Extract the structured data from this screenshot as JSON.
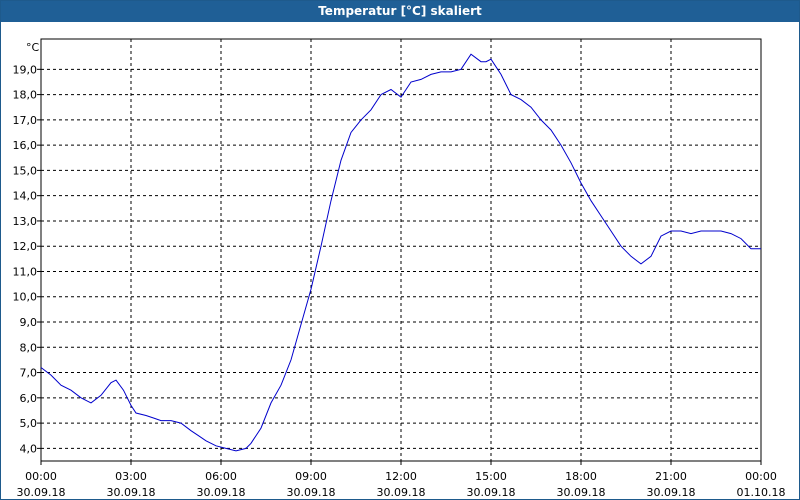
{
  "window": {
    "title": "Temperatur [°C] skaliert"
  },
  "chart_data": {
    "type": "line",
    "title": "Temperatur [°C] skaliert",
    "ylabel": "°C",
    "xlabel": "",
    "ylim": [
      3.5,
      20.2
    ],
    "y_ticks": [
      "4,0",
      "5,0",
      "6,0",
      "7,0",
      "8,0",
      "9,0",
      "10,0",
      "11,0",
      "12,0",
      "13,0",
      "14,0",
      "15,0",
      "16,0",
      "17,0",
      "18,0",
      "19,0"
    ],
    "x_ticks": [
      {
        "time": "00:00",
        "date": "30.09.18"
      },
      {
        "time": "03:00",
        "date": "30.09.18"
      },
      {
        "time": "06:00",
        "date": "30.09.18"
      },
      {
        "time": "09:00",
        "date": "30.09.18"
      },
      {
        "time": "12:00",
        "date": "30.09.18"
      },
      {
        "time": "15:00",
        "date": "30.09.18"
      },
      {
        "time": "18:00",
        "date": "30.09.18"
      },
      {
        "time": "21:00",
        "date": "30.09.18"
      },
      {
        "time": "00:00",
        "date": "01.10.18"
      }
    ],
    "grid": true,
    "line_color": "#0000cc",
    "series": [
      {
        "x": [
          "00:00",
          "00:20",
          "00:40",
          "01:00",
          "01:20",
          "01:40",
          "02:00",
          "02:20",
          "02:30",
          "02:45",
          "03:00",
          "03:10",
          "03:30",
          "03:45",
          "04:00",
          "04:20",
          "04:40",
          "05:00",
          "05:15",
          "05:30",
          "05:50",
          "06:10",
          "06:30",
          "06:50",
          "07:00",
          "07:20",
          "07:40",
          "08:00",
          "08:20",
          "08:40",
          "09:00",
          "09:20",
          "09:40",
          "10:00",
          "10:20",
          "10:40",
          "11:00",
          "11:20",
          "11:40",
          "12:00",
          "12:20",
          "12:40",
          "13:00",
          "13:20",
          "13:40",
          "14:00",
          "14:20",
          "14:40",
          "14:50",
          "15:00",
          "15:20",
          "15:40",
          "16:00",
          "16:20",
          "16:40",
          "17:00",
          "17:20",
          "17:40",
          "18:00",
          "18:20",
          "18:40",
          "19:00",
          "19:20",
          "19:40",
          "20:00",
          "20:20",
          "20:40",
          "21:00",
          "21:20",
          "21:40",
          "22:00",
          "22:20",
          "22:40",
          "23:00",
          "23:20",
          "23:40",
          "00:00"
        ],
        "y": [
          7.2,
          6.9,
          6.5,
          6.3,
          6.0,
          5.8,
          6.1,
          6.6,
          6.7,
          6.3,
          5.7,
          5.4,
          5.3,
          5.2,
          5.1,
          5.1,
          5.0,
          4.7,
          4.5,
          4.3,
          4.1,
          4.0,
          3.9,
          4.0,
          4.2,
          4.8,
          5.8,
          6.5,
          7.5,
          8.9,
          10.3,
          12.0,
          13.8,
          15.4,
          16.5,
          17.0,
          17.4,
          18.0,
          18.2,
          17.9,
          18.5,
          18.6,
          18.8,
          18.9,
          18.9,
          19.0,
          19.6,
          19.3,
          19.3,
          19.4,
          18.8,
          18.0,
          17.8,
          17.5,
          17.0,
          16.6,
          16.0,
          15.3,
          14.5,
          13.8,
          13.2,
          12.6,
          12.0,
          11.6,
          11.3,
          11.6,
          12.4,
          12.6,
          12.6,
          12.5,
          12.6,
          12.6,
          12.6,
          12.5,
          12.3,
          11.9,
          11.9
        ]
      }
    ]
  }
}
